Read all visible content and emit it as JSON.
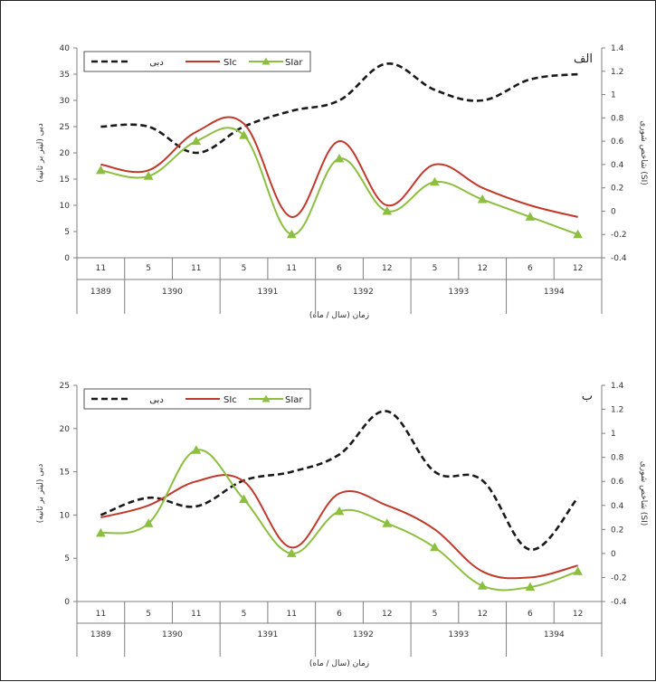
{
  "colors": {
    "q": "#1a1a1a",
    "sic": "#c0392b",
    "siar": "#8cbf3f",
    "axis": "#7f7f7f"
  },
  "legend": {
    "q": "دبی",
    "sic": "SIc",
    "siar": "SIar"
  },
  "chart_data": [
    {
      "type": "line",
      "panel_label": "الف",
      "ylabel_left": "دبی (لیتر بر ثانیه)",
      "ylabel_right": "شاخص شوری (SI)",
      "xlabel": "زمان (سال / ماه)",
      "ylim_left": [
        0,
        40
      ],
      "yticks_left": [
        "0",
        "5",
        "10",
        "15",
        "20",
        "25",
        "30",
        "35",
        "40"
      ],
      "ylim_right": [
        -0.4,
        1.4
      ],
      "yticks_right": [
        "-0.4",
        "-0.2",
        "0",
        "0.2",
        "0.4",
        "0.6",
        "0.8",
        "1",
        "1.2",
        "1.4"
      ],
      "months": [
        "11",
        "5",
        "11",
        "5",
        "11",
        "6",
        "12",
        "5",
        "12",
        "6",
        "12"
      ],
      "years": [
        {
          "label": "1389",
          "span": 1
        },
        {
          "label": "1390",
          "span": 2
        },
        {
          "label": "1391",
          "span": 2
        },
        {
          "label": "1392",
          "span": 2
        },
        {
          "label": "1393",
          "span": 2
        },
        {
          "label": "1394",
          "span": 2
        }
      ],
      "series": [
        {
          "key": "q",
          "axis": "left",
          "values": [
            25,
            25,
            20,
            25,
            28,
            30,
            37,
            32,
            30,
            34,
            35
          ]
        },
        {
          "key": "sic",
          "axis": "right",
          "values": [
            0.4,
            0.35,
            0.68,
            0.75,
            -0.05,
            0.6,
            0.05,
            0.4,
            0.2,
            0.05,
            -0.05
          ]
        },
        {
          "key": "siar",
          "axis": "right",
          "values": [
            0.35,
            0.3,
            0.6,
            0.65,
            -0.2,
            0.45,
            0.0,
            0.25,
            0.1,
            -0.05,
            -0.2
          ]
        }
      ]
    },
    {
      "type": "line",
      "panel_label": "ب",
      "ylabel_left": "دبی (لیتر بر ثانیه)",
      "ylabel_right": "شاخص شوری (SI)",
      "xlabel": "زمان (سال / ماه)",
      "ylim_left": [
        0,
        25
      ],
      "yticks_left": [
        "0",
        "5",
        "10",
        "15",
        "20",
        "25"
      ],
      "ylim_right": [
        -0.4,
        1.4
      ],
      "yticks_right": [
        "-0.4",
        "-0.2",
        "0",
        "0.2",
        "0.4",
        "0.6",
        "0.8",
        "1",
        "1.2",
        "1.4"
      ],
      "months": [
        "11",
        "5",
        "11",
        "5",
        "11",
        "6",
        "12",
        "5",
        "12",
        "6",
        "12"
      ],
      "years": [
        {
          "label": "1389",
          "span": 1
        },
        {
          "label": "1390",
          "span": 2
        },
        {
          "label": "1391",
          "span": 2
        },
        {
          "label": "1392",
          "span": 2
        },
        {
          "label": "1393",
          "span": 2
        },
        {
          "label": "1394",
          "span": 2
        }
      ],
      "series": [
        {
          "key": "q",
          "axis": "left",
          "values": [
            10,
            12,
            11,
            14,
            15,
            17,
            22,
            15,
            14,
            6,
            12
          ]
        },
        {
          "key": "sic",
          "axis": "right",
          "values": [
            0.3,
            0.4,
            0.6,
            0.6,
            0.05,
            0.5,
            0.4,
            0.2,
            -0.15,
            -0.2,
            -0.1
          ]
        },
        {
          "key": "siar",
          "axis": "right",
          "values": [
            0.17,
            0.25,
            0.86,
            0.45,
            0.0,
            0.35,
            0.25,
            0.05,
            -0.27,
            -0.28,
            -0.15
          ]
        }
      ]
    }
  ]
}
